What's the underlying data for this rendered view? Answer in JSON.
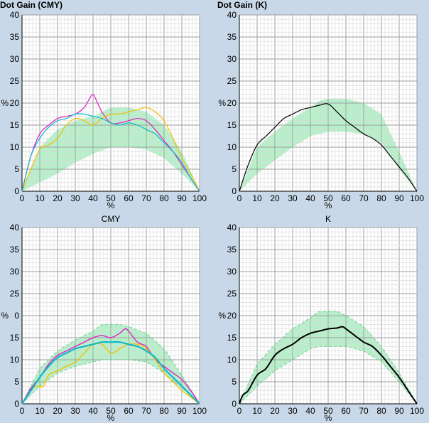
{
  "colors": {
    "background": "#c9d8e8",
    "plot_bg": "#ffffff",
    "band_fill": "#a8eec0",
    "band_edge": "#6fd495",
    "grid_major": "#9e9e9e",
    "grid_minor": "#d8d8d8",
    "cyan": "#10b8c8",
    "magenta": "#e020c8",
    "yellow": "#f0c000",
    "black": "#000000"
  },
  "chart_data": [
    {
      "type": "line",
      "title": "Dot Gain (CMY)",
      "title_align": "left",
      "xlabel": "%",
      "ylabel": "%",
      "xlim": [
        0,
        100
      ],
      "ylim": [
        0,
        40
      ],
      "x_ticks": [
        "0",
        "10",
        "20",
        "30",
        "40",
        "50",
        "60",
        "70",
        "80",
        "90",
        "100"
      ],
      "y_ticks": [
        "0",
        "5",
        "10",
        "15",
        "20",
        "25",
        "30",
        "35",
        "40"
      ],
      "y_ticks_shown": [
        "0",
        "5",
        "10",
        "15",
        "20",
        "25",
        "30",
        "35",
        "40"
      ],
      "grid": true,
      "tolerance_band": {
        "x": [
          0,
          10,
          20,
          30,
          40,
          50,
          60,
          70,
          80,
          90,
          100
        ],
        "lower": [
          0,
          2,
          4,
          6.5,
          8.5,
          10,
          10,
          9.5,
          7.5,
          4,
          0
        ],
        "upper": [
          0,
          10,
          14,
          16,
          17,
          19,
          19,
          18,
          15,
          9,
          0
        ],
        "dashed_edges": false
      },
      "series": [
        {
          "color": "magenta",
          "width": 1.2,
          "x": [
            0,
            5,
            10,
            15,
            20,
            25,
            30,
            35,
            38,
            40,
            42,
            45,
            50,
            55,
            60,
            65,
            70,
            75,
            80,
            85,
            90,
            95,
            100
          ],
          "values": [
            0,
            8,
            13,
            15,
            16.5,
            17,
            17.5,
            19,
            21,
            22,
            20.5,
            18,
            15.5,
            15.5,
            16,
            16.5,
            16,
            14,
            11.5,
            9,
            6,
            3,
            0
          ]
        },
        {
          "color": "yellow",
          "width": 1.2,
          "x": [
            0,
            5,
            10,
            15,
            20,
            25,
            30,
            35,
            40,
            45,
            50,
            55,
            60,
            65,
            70,
            75,
            80,
            85,
            90,
            95,
            100
          ],
          "values": [
            0,
            5,
            9.5,
            10.5,
            12,
            15,
            16.5,
            16,
            15,
            16.5,
            17.5,
            17.5,
            18,
            18.5,
            19,
            18,
            16,
            12,
            7.5,
            4,
            0
          ]
        },
        {
          "color": "cyan",
          "width": 1.2,
          "x": [
            0,
            5,
            10,
            15,
            20,
            25,
            30,
            35,
            40,
            45,
            50,
            55,
            60,
            65,
            70,
            75,
            80,
            85,
            90,
            95,
            100
          ],
          "values": [
            0,
            8,
            12,
            14.5,
            16,
            16.5,
            17.5,
            17.5,
            17,
            16.5,
            15.5,
            15,
            15.5,
            15,
            14,
            13,
            11,
            9,
            6.5,
            3,
            0
          ]
        }
      ]
    },
    {
      "type": "line",
      "title": "Dot Gain (K)",
      "title_align": "left",
      "xlabel": "%",
      "ylabel": "%",
      "xlim": [
        0,
        100
      ],
      "ylim": [
        0,
        40
      ],
      "x_ticks": [
        "0",
        "10",
        "20",
        "30",
        "40",
        "50",
        "60",
        "70",
        "80",
        "90",
        "100"
      ],
      "y_ticks": [
        "0",
        "5",
        "10",
        "15",
        "20",
        "25",
        "30",
        "35",
        "40"
      ],
      "y_ticks_shown": [
        "0",
        "5",
        "10",
        "15",
        "20",
        "25",
        "30",
        "35",
        "40"
      ],
      "grid": true,
      "tolerance_band": {
        "x": [
          0,
          10,
          20,
          30,
          40,
          45,
          50,
          60,
          70,
          80,
          90,
          100
        ],
        "lower": [
          0,
          4,
          7,
          10,
          12.5,
          13,
          13.5,
          13.5,
          13,
          11,
          5,
          0
        ],
        "upper": [
          0,
          10,
          13.5,
          16.5,
          19,
          20.5,
          21,
          21,
          20,
          17.5,
          9,
          0
        ],
        "dashed_edges": false
      },
      "series": [
        {
          "color": "black",
          "width": 1.2,
          "x": [
            0,
            5,
            10,
            15,
            20,
            25,
            30,
            35,
            40,
            45,
            50,
            55,
            60,
            65,
            70,
            75,
            80,
            85,
            90,
            95,
            100
          ],
          "values": [
            0,
            6,
            10.5,
            12.5,
            14.5,
            16.5,
            17.5,
            18.5,
            19,
            19.5,
            19.8,
            18,
            16,
            14.5,
            13,
            12,
            10.5,
            8,
            5.5,
            3,
            0
          ]
        }
      ]
    },
    {
      "type": "line",
      "title": "CMY",
      "title_align": "center",
      "xlabel": "%",
      "ylabel": "%",
      "xlim": [
        0,
        100
      ],
      "ylim": [
        0,
        40
      ],
      "x_ticks": [
        "0",
        "10",
        "20",
        "30",
        "40",
        "50",
        "60",
        "70",
        "80",
        "90",
        "100"
      ],
      "y_ticks": [
        "0",
        "5",
        "10",
        "15",
        "20",
        "25",
        "30",
        "35",
        "40"
      ],
      "y_ticks_shown": [
        "0",
        "5",
        "10",
        "15",
        "",
        "25",
        "30",
        "35",
        "40"
      ],
      "y_partial": {
        "value": 20,
        "text": "20",
        "hidden_chars": 1
      },
      "grid": true,
      "tolerance_band": {
        "x": [
          0,
          10,
          20,
          30,
          40,
          45,
          50,
          55,
          60,
          70,
          80,
          90,
          100
        ],
        "lower": [
          0,
          4,
          7,
          8.5,
          9.5,
          10,
          10,
          10,
          10,
          9.5,
          7,
          3.5,
          0
        ],
        "upper": [
          0,
          8,
          12,
          14.5,
          16.5,
          18,
          18,
          18,
          17.5,
          16,
          12.5,
          6.5,
          0
        ],
        "dashed_edges": true
      },
      "series": [
        {
          "color": "magenta",
          "width": 1.4,
          "x": [
            0,
            5,
            10,
            15,
            20,
            25,
            30,
            35,
            40,
            45,
            50,
            55,
            58,
            60,
            65,
            70,
            75,
            80,
            85,
            90,
            95,
            100
          ],
          "values": [
            0,
            3.5,
            6,
            9,
            11,
            12,
            13,
            14,
            15,
            15.5,
            15,
            16,
            17,
            16.5,
            14,
            13,
            10,
            8.5,
            7,
            5.5,
            3,
            0
          ]
        },
        {
          "color": "yellow",
          "width": 1.4,
          "x": [
            0,
            5,
            8,
            12,
            15,
            20,
            25,
            30,
            35,
            40,
            45,
            50,
            55,
            60,
            65,
            70,
            75,
            80,
            85,
            90,
            95,
            100
          ],
          "values": [
            0,
            3,
            4,
            4,
            6.5,
            7.5,
            8.5,
            9.5,
            11.5,
            13.5,
            13.5,
            11.5,
            12.5,
            13.5,
            13.5,
            12.5,
            10,
            7,
            5,
            3,
            1.5,
            0
          ]
        },
        {
          "color": "cyan",
          "width": 2.2,
          "x": [
            0,
            5,
            10,
            15,
            20,
            25,
            30,
            35,
            40,
            45,
            50,
            55,
            60,
            65,
            70,
            75,
            80,
            85,
            90,
            95,
            100
          ],
          "values": [
            0,
            3,
            6,
            8.5,
            10.5,
            11.5,
            12.5,
            13,
            13.5,
            14,
            14,
            14,
            13.5,
            13,
            12,
            10.5,
            8,
            6,
            4,
            2,
            0
          ]
        }
      ]
    },
    {
      "type": "line",
      "title": "K",
      "title_align": "center",
      "xlabel": "%",
      "ylabel": "%",
      "xlim": [
        0,
        100
      ],
      "ylim": [
        0,
        40
      ],
      "x_ticks": [
        "0",
        "10",
        "20",
        "30",
        "40",
        "50",
        "60",
        "70",
        "80",
        "90",
        "100"
      ],
      "y_ticks": [
        "0",
        "5",
        "10",
        "15",
        "20",
        "25",
        "30",
        "35",
        "40"
      ],
      "y_ticks_shown": [
        "0",
        "5",
        "10",
        "15",
        "20",
        "25",
        "30",
        "35",
        "40"
      ],
      "grid": true,
      "tolerance_band": {
        "x": [
          0,
          10,
          20,
          30,
          40,
          45,
          50,
          55,
          60,
          70,
          80,
          90,
          100
        ],
        "lower": [
          0,
          4,
          7.5,
          10,
          12.5,
          13,
          13,
          13,
          13,
          12,
          9.5,
          5,
          0
        ],
        "upper": [
          0,
          9,
          13.5,
          17,
          19.5,
          21,
          21,
          21,
          20,
          17.5,
          13,
          7,
          0
        ],
        "dashed_edges": true
      },
      "series": [
        {
          "color": "black",
          "width": 2,
          "x": [
            0,
            2,
            5,
            10,
            15,
            20,
            25,
            30,
            35,
            40,
            45,
            50,
            55,
            58,
            60,
            65,
            70,
            75,
            80,
            85,
            90,
            95,
            100
          ],
          "values": [
            0,
            2,
            3,
            6.5,
            8,
            11,
            12.5,
            13.5,
            15,
            16,
            16.5,
            17,
            17.2,
            17.5,
            17,
            15.5,
            14,
            13,
            11,
            8.5,
            6,
            3,
            0
          ]
        }
      ]
    }
  ]
}
